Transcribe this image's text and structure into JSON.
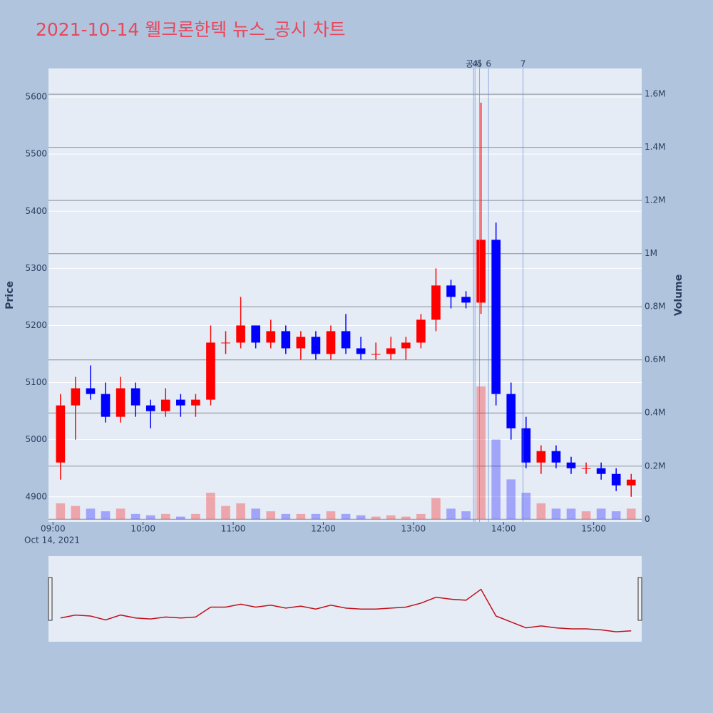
{
  "chart_data": {
    "type": "candlestick",
    "title": "2021-10-14 웰크론한텍 뉴스_공시 차트",
    "y_label": "Price",
    "y2_label": "Volume",
    "x_date_label": "Oct 14, 2021",
    "x": [
      "09:00",
      "09:10",
      "09:20",
      "09:30",
      "09:40",
      "09:50",
      "10:00",
      "10:10",
      "10:20",
      "10:30",
      "10:40",
      "10:50",
      "11:00",
      "11:10",
      "11:20",
      "11:30",
      "11:40",
      "11:50",
      "12:00",
      "12:10",
      "12:20",
      "12:30",
      "12:40",
      "12:50",
      "13:00",
      "13:10",
      "13:20",
      "13:30",
      "13:40",
      "13:50",
      "14:00",
      "14:10",
      "14:20",
      "14:30",
      "14:40",
      "14:50",
      "15:00",
      "15:10",
      "15:20"
    ],
    "open": [
      4960,
      5060,
      5090,
      5080,
      5040,
      5090,
      5060,
      5050,
      5070,
      5060,
      5070,
      5170,
      5170,
      5200,
      5170,
      5190,
      5160,
      5180,
      5150,
      5190,
      5160,
      5150,
      5150,
      5160,
      5170,
      5210,
      5270,
      5250,
      5240,
      5350,
      5080,
      5020,
      4960,
      4980,
      4960,
      4950,
      4950,
      4940,
      4920
    ],
    "high": [
      5080,
      5110,
      5130,
      5100,
      5110,
      5100,
      5070,
      5090,
      5080,
      5080,
      5200,
      5190,
      5250,
      5200,
      5210,
      5200,
      5190,
      5190,
      5200,
      5220,
      5180,
      5170,
      5180,
      5180,
      5220,
      5300,
      5280,
      5260,
      5590,
      5380,
      5100,
      5040,
      4990,
      4990,
      4970,
      4960,
      4960,
      4950,
      4940
    ],
    "low": [
      4930,
      5000,
      5070,
      5030,
      5030,
      5040,
      5020,
      5040,
      5040,
      5040,
      5060,
      5150,
      5160,
      5160,
      5160,
      5150,
      5140,
      5140,
      5140,
      5150,
      5140,
      5140,
      5140,
      5140,
      5160,
      5190,
      5230,
      5230,
      5220,
      5060,
      5000,
      4950,
      4940,
      4950,
      4940,
      4940,
      4930,
      4910,
      4900
    ],
    "close": [
      5060,
      5090,
      5080,
      5040,
      5090,
      5060,
      5050,
      5070,
      5060,
      5070,
      5170,
      5170,
      5200,
      5170,
      5190,
      5160,
      5180,
      5150,
      5190,
      5160,
      5150,
      5150,
      5160,
      5170,
      5210,
      5270,
      5250,
      5240,
      5350,
      5080,
      5020,
      4960,
      4980,
      4960,
      4950,
      4950,
      4940,
      4920,
      4930
    ],
    "volume": [
      60000,
      50000,
      40000,
      30000,
      40000,
      20000,
      15000,
      20000,
      10000,
      20000,
      100000,
      50000,
      60000,
      40000,
      30000,
      20000,
      20000,
      20000,
      30000,
      20000,
      15000,
      10000,
      15000,
      10000,
      20000,
      80000,
      40000,
      30000,
      500000,
      300000,
      150000,
      100000,
      60000,
      40000,
      40000,
      30000,
      40000,
      30000,
      40000
    ],
    "up_color": "#ff0000",
    "down_color": "#0000ff",
    "xlim": [
      "08:57",
      "15:32"
    ],
    "xticks": [
      "09:00",
      "10:00",
      "11:00",
      "12:00",
      "13:00",
      "14:00",
      "15:00"
    ],
    "ylim": [
      4856,
      5650
    ],
    "yticks": [
      4900,
      5000,
      5100,
      5200,
      5300,
      5400,
      5500,
      5600
    ],
    "y2lim": [
      -10000,
      1697000
    ],
    "y2ticks": [
      0,
      {
        "value": 200000,
        "label": "0.2M"
      },
      {
        "value": 400000,
        "label": "0.4M"
      },
      {
        "value": 600000,
        "label": "0.6M"
      },
      {
        "value": 800000,
        "label": "0.8M"
      },
      {
        "value": 1000000,
        "label": "1M"
      },
      {
        "value": 1200000,
        "label": "1.2M"
      },
      {
        "value": 1400000,
        "label": "1.4M"
      },
      {
        "value": 1600000,
        "label": "1.6M"
      }
    ],
    "annotations": [
      {
        "x": "13:40",
        "label": "공시"
      },
      {
        "x": "13:41",
        "label": "4"
      },
      {
        "x": "13:44",
        "label": "5"
      },
      {
        "x": "13:50",
        "label": "6"
      },
      {
        "x": "14:13",
        "label": "7"
      }
    ]
  }
}
